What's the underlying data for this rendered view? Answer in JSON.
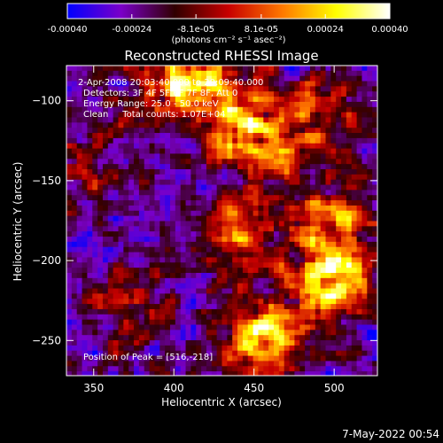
{
  "chart_data": {
    "type": "heatmap",
    "title": "Reconstructed RHESSI Image",
    "xlabel": "Heliocentric X (arcsec)",
    "ylabel": "Heliocentric Y (arcsec)",
    "xlim": [
      333,
      527
    ],
    "ylim": [
      -272,
      -78
    ],
    "xticks": [
      350,
      400,
      450,
      500
    ],
    "yticks": [
      -100,
      -150,
      -200,
      -250
    ],
    "colorbar": {
      "range": [
        -0.0004,
        0.0004
      ],
      "tick_labels": [
        "-0.00040",
        "-0.00024",
        "-8.1e-05",
        "8.1e-05",
        "0.00024",
        "0.00040"
      ],
      "tick_values": [
        -0.0004,
        -0.00024,
        -8.1e-05,
        8.1e-05,
        0.00024,
        0.0004
      ],
      "units_label": "(photons cm⁻² s⁻¹ asec⁻²)",
      "colors": [
        "#0000ff",
        "#7a00c8",
        "#300000",
        "#c80000",
        "#ff7800",
        "#ffff00",
        "#ffffff"
      ]
    },
    "info_lines": [
      "2-Apr-2008 20:03:40.000 to 20:09:40.000",
      "Detectors: 3F 4F 5F 6F 7F 8F, Att 0",
      "Energy Range: 25.0 - 50.0 keV",
      "Clean     Total counts: 1.07E+04"
    ],
    "peak_label": "Position of Peak = [516,-218]",
    "peak": [
      516,
      -218
    ],
    "hot_regions": [
      {
        "x": 495,
        "y": -212,
        "amp": 1.0
      },
      {
        "x": 455,
        "y": -248,
        "amp": 0.85
      },
      {
        "x": 450,
        "y": -125,
        "amp": 0.75
      },
      {
        "x": 425,
        "y": -95,
        "amp": 0.65
      },
      {
        "x": 500,
        "y": -175,
        "amp": 0.55
      },
      {
        "x": 395,
        "y": -90,
        "amp": 0.5
      },
      {
        "x": 440,
        "y": -185,
        "amp": 0.45
      },
      {
        "x": 490,
        "y": -110,
        "amp": 0.5
      },
      {
        "x": 370,
        "y": -230,
        "amp": 0.35
      },
      {
        "x": 345,
        "y": -140,
        "amp": 0.25
      }
    ]
  },
  "footer_timestamp": "7-May-2022 00:54"
}
